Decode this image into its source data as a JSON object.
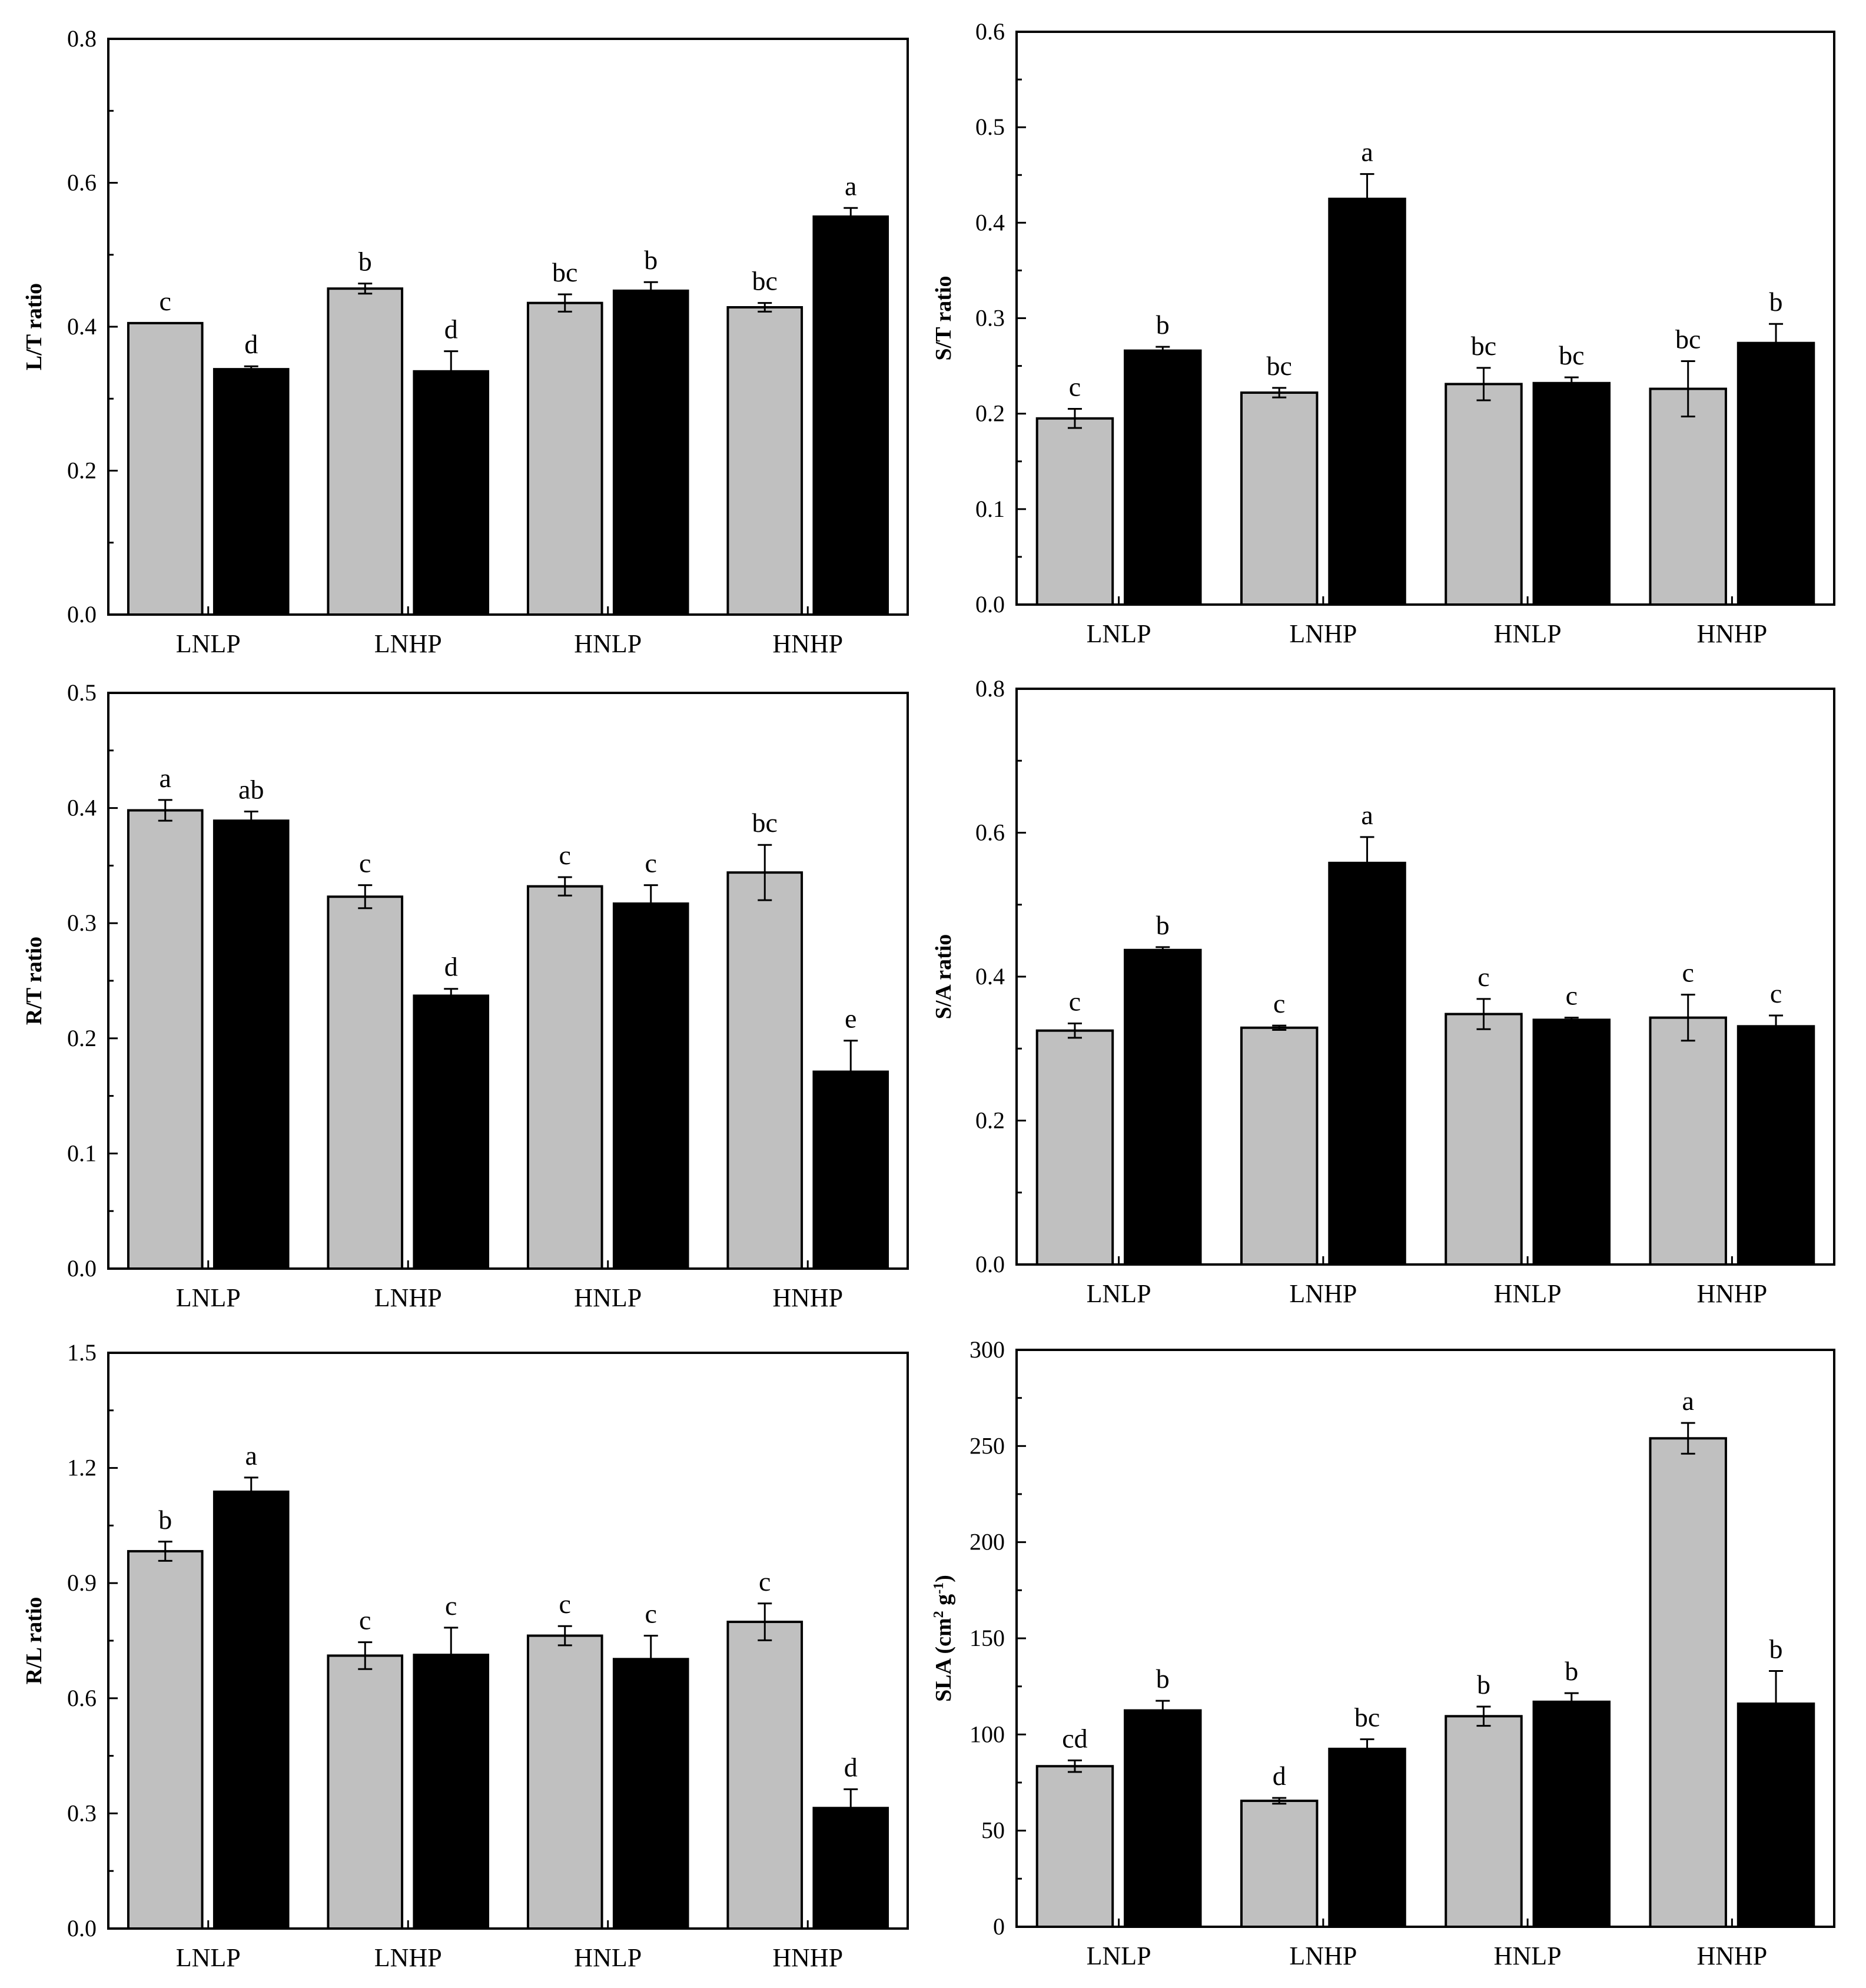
{
  "colors": {
    "gray_bar": "#c0c0c0",
    "black_bar": "#000000",
    "axis": "#000000"
  },
  "chart_data": [
    {
      "type": "bar",
      "ylabel": "L/T ratio",
      "ylim": [
        0,
        0.8
      ],
      "yticks": [
        "0.0",
        "0.2",
        "0.4",
        "0.6",
        "0.8"
      ],
      "categories": [
        "LNLP",
        "LNHP",
        "HNLP",
        "HNHP"
      ],
      "series": [
        {
          "name": "gray",
          "values": [
            0.405,
            0.453,
            0.433,
            0.427
          ],
          "errors": [
            0.0,
            0.007,
            0.012,
            0.006
          ],
          "letters": [
            "c",
            "b",
            "bc",
            "bc"
          ]
        },
        {
          "name": "black",
          "values": [
            0.341,
            0.338,
            0.45,
            0.553
          ],
          "errors": [
            0.004,
            0.028,
            0.012,
            0.012
          ],
          "letters": [
            "d",
            "d",
            "b",
            "a"
          ]
        }
      ]
    },
    {
      "type": "bar",
      "ylabel": "S/T ratio",
      "ylim": [
        0,
        0.6
      ],
      "yticks": [
        "0.0",
        "0.1",
        "0.2",
        "0.3",
        "0.4",
        "0.5",
        "0.6"
      ],
      "categories": [
        "LNLP",
        "LNHP",
        "HNLP",
        "HNHP"
      ],
      "series": [
        {
          "name": "gray",
          "values": [
            0.195,
            0.222,
            0.231,
            0.226
          ],
          "errors": [
            0.01,
            0.005,
            0.017,
            0.029
          ],
          "letters": [
            "c",
            "bc",
            "bc",
            "bc"
          ]
        },
        {
          "name": "black",
          "values": [
            0.266,
            0.425,
            0.232,
            0.274
          ],
          "errors": [
            0.004,
            0.026,
            0.006,
            0.02
          ],
          "letters": [
            "b",
            "a",
            "bc",
            "b"
          ]
        }
      ]
    },
    {
      "type": "bar",
      "ylabel": "R/T ratio",
      "ylim": [
        0,
        0.5
      ],
      "yticks": [
        "0.0",
        "0.1",
        "0.2",
        "0.3",
        "0.4",
        "0.5"
      ],
      "categories": [
        "LNLP",
        "LNHP",
        "HNLP",
        "HNHP"
      ],
      "series": [
        {
          "name": "gray",
          "values": [
            0.398,
            0.323,
            0.332,
            0.344
          ],
          "errors": [
            0.009,
            0.01,
            0.008,
            0.024
          ],
          "letters": [
            "a",
            "c",
            "c",
            "bc"
          ]
        },
        {
          "name": "black",
          "values": [
            0.389,
            0.237,
            0.317,
            0.171
          ],
          "errors": [
            0.008,
            0.006,
            0.016,
            0.027
          ],
          "letters": [
            "ab",
            "d",
            "c",
            "e"
          ]
        }
      ]
    },
    {
      "type": "bar",
      "ylabel": "S/A ratio",
      "ylim": [
        0,
        0.8
      ],
      "yticks": [
        "0.0",
        "0.2",
        "0.4",
        "0.6",
        "0.8"
      ],
      "categories": [
        "LNLP",
        "LNHP",
        "HNLP",
        "HNHP"
      ],
      "series": [
        {
          "name": "gray",
          "values": [
            0.325,
            0.329,
            0.348,
            0.343
          ],
          "errors": [
            0.01,
            0.003,
            0.021,
            0.032
          ],
          "letters": [
            "c",
            "c",
            "c",
            "c"
          ]
        },
        {
          "name": "black",
          "values": [
            0.437,
            0.558,
            0.34,
            0.331
          ],
          "errors": [
            0.004,
            0.036,
            0.003,
            0.015
          ],
          "letters": [
            "b",
            "a",
            "c",
            "c"
          ]
        }
      ]
    },
    {
      "type": "bar",
      "ylabel": "R/L ratio",
      "ylim": [
        0,
        1.5
      ],
      "yticks": [
        "0.0",
        "0.3",
        "0.6",
        "0.9",
        "1.2",
        "1.5"
      ],
      "categories": [
        "LNLP",
        "LNHP",
        "HNLP",
        "HNHP"
      ],
      "series": [
        {
          "name": "gray",
          "values": [
            0.983,
            0.711,
            0.763,
            0.799
          ],
          "errors": [
            0.025,
            0.035,
            0.025,
            0.048
          ],
          "letters": [
            "b",
            "c",
            "c",
            "c"
          ]
        },
        {
          "name": "black",
          "values": [
            1.138,
            0.713,
            0.702,
            0.314
          ],
          "errors": [
            0.037,
            0.071,
            0.061,
            0.049
          ],
          "letters": [
            "a",
            "c",
            "c",
            "d"
          ]
        }
      ]
    },
    {
      "type": "bar",
      "ylabel": "SLA (cm",
      "ylabel_sup1": "2",
      "ylabel_mid": " g",
      "ylabel_sup2": "-1",
      "ylabel_end": ")",
      "ylim": [
        0,
        300
      ],
      "yticks": [
        "0",
        "50",
        "100",
        "150",
        "200",
        "250",
        "300"
      ],
      "categories": [
        "LNLP",
        "LNHP",
        "HNLP",
        "HNHP"
      ],
      "series": [
        {
          "name": "gray",
          "values": [
            83.5,
            65.5,
            109.5,
            254.0
          ],
          "errors": [
            3.0,
            1.5,
            5.0,
            8.0
          ],
          "letters": [
            "cd",
            "d",
            "b",
            "a"
          ]
        },
        {
          "name": "black",
          "values": [
            112.5,
            92.5,
            117.0,
            116.0
          ],
          "errors": [
            5.0,
            5.0,
            4.5,
            17.0
          ],
          "letters": [
            "b",
            "bc",
            "b",
            "b"
          ]
        }
      ]
    }
  ]
}
